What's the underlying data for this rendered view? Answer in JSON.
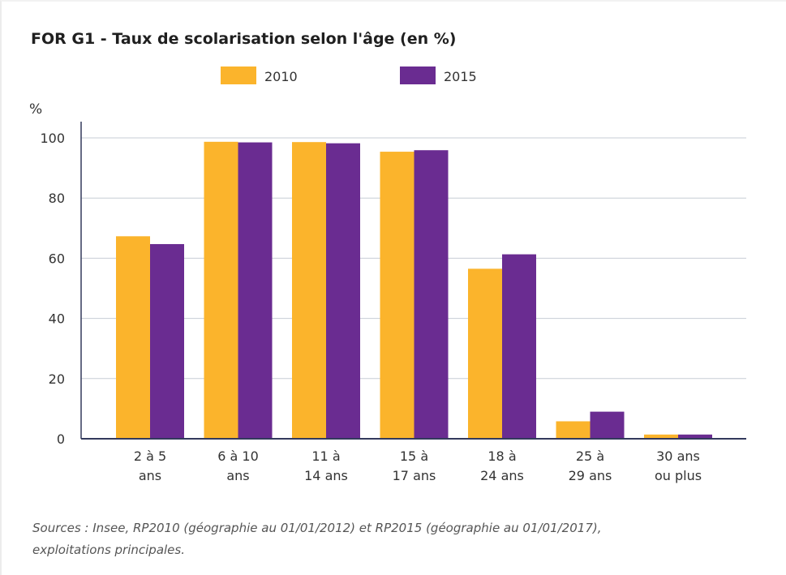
{
  "chart_data": {
    "type": "bar",
    "title": "FOR G1 - Taux de scolarisation selon l'âge (en %)",
    "ylabel": "%",
    "ylim": [
      0,
      100
    ],
    "yticks": [
      0,
      20,
      40,
      60,
      80,
      100
    ],
    "grid": true,
    "legend_position": "top",
    "categories": [
      [
        "2 à 5",
        "ans"
      ],
      [
        "6 à 10",
        "ans"
      ],
      [
        "11 à",
        "14 ans"
      ],
      [
        "15 à",
        "17 ans"
      ],
      [
        "18 à",
        "24 ans"
      ],
      [
        "25 à",
        "29 ans"
      ],
      [
        "30 ans",
        "ou plus"
      ]
    ],
    "series": [
      {
        "name": "2010",
        "color": "#fbb42c",
        "values": [
          67.3,
          98.7,
          98.6,
          95.4,
          56.5,
          5.8,
          1.4
        ]
      },
      {
        "name": "2015",
        "color": "#6a2c91",
        "values": [
          64.7,
          98.5,
          98.2,
          95.9,
          61.3,
          9.0,
          1.4
        ]
      }
    ],
    "source": [
      "Sources : Insee, RP2010 (géographie au 01/01/2012) et RP2015 (géographie au 01/01/2017),",
      "exploitations principales."
    ]
  }
}
